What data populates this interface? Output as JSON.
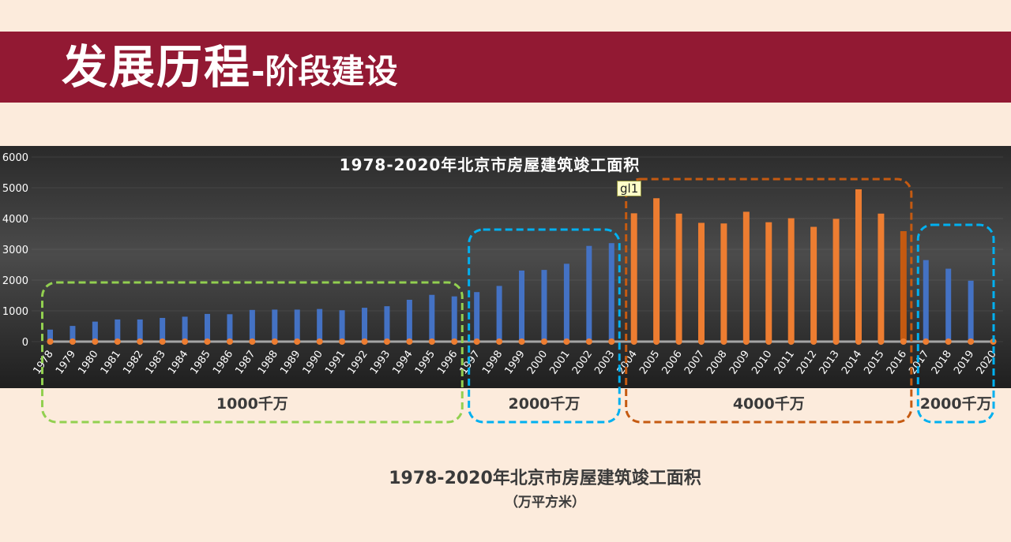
{
  "header": {
    "title_main": "发展历程",
    "title_sub": "-阶段建设"
  },
  "chart_data": {
    "type": "bar",
    "title": "1978-2020年北京市房屋建筑竣工面积",
    "categories": [
      "1978",
      "1979",
      "1980",
      "1981",
      "1982",
      "1983",
      "1984",
      "1985",
      "1986",
      "1987",
      "1988",
      "1989",
      "1990",
      "1991",
      "1992",
      "1993",
      "1994",
      "1995",
      "1996",
      "1997",
      "1998",
      "1999",
      "2000",
      "2001",
      "2002",
      "2003",
      "2004",
      "2005",
      "2006",
      "2007",
      "2008",
      "2009",
      "2010",
      "2011",
      "2012",
      "2013",
      "2014",
      "2015",
      "2016",
      "2017",
      "2018",
      "2019",
      "2020"
    ],
    "series": [
      {
        "values": [
          390,
          510,
          650,
          720,
          720,
          770,
          810,
          900,
          890,
          1030,
          1040,
          1040,
          1060,
          1020,
          1100,
          1150,
          1360,
          1520,
          1470,
          1610,
          1810,
          2310,
          2330,
          2530,
          3110,
          3200,
          4170,
          4660,
          4160,
          3860,
          3840,
          4220,
          3880,
          4010,
          3730,
          3990,
          4950,
          4160,
          3590,
          2650,
          2370,
          1980,
          0
        ]
      },
      {
        "values": [
          0,
          0,
          0,
          0,
          0,
          0,
          0,
          0,
          0,
          0,
          0,
          0,
          0,
          0,
          0,
          0,
          0,
          0,
          0,
          0,
          0,
          0,
          0,
          0,
          0,
          0,
          0,
          0,
          0,
          0,
          0,
          0,
          0,
          0,
          0,
          0,
          0,
          0,
          0,
          0,
          0,
          0,
          0
        ]
      }
    ],
    "ylim": [
      0,
      6000
    ],
    "yticks": [
      "0",
      "1000",
      "2000",
      "3000",
      "4000",
      "5000",
      "6000"
    ],
    "colors": {
      "blue": "#4472c4",
      "orange": "#ed7d31",
      "dark_orange": "#c55a11",
      "line": "#a5a5a5",
      "marker": "#ed7d31"
    },
    "annotation": "gl1",
    "groups": [
      {
        "label": "1000千万",
        "from": "1978",
        "to": "1996",
        "color": "#92d050"
      },
      {
        "label": "2000千万",
        "from": "1997",
        "to": "2003",
        "color": "#00b0f0"
      },
      {
        "label": "4000千万",
        "from": "2004",
        "to": "2016",
        "color": "#c55a11"
      },
      {
        "label": "2000千万",
        "from": "2017",
        "to": "2020",
        "color": "#00b0f0"
      }
    ],
    "caption": "1978-2020年北京市房屋建筑竣工面积",
    "unit": "（万平方米）"
  }
}
